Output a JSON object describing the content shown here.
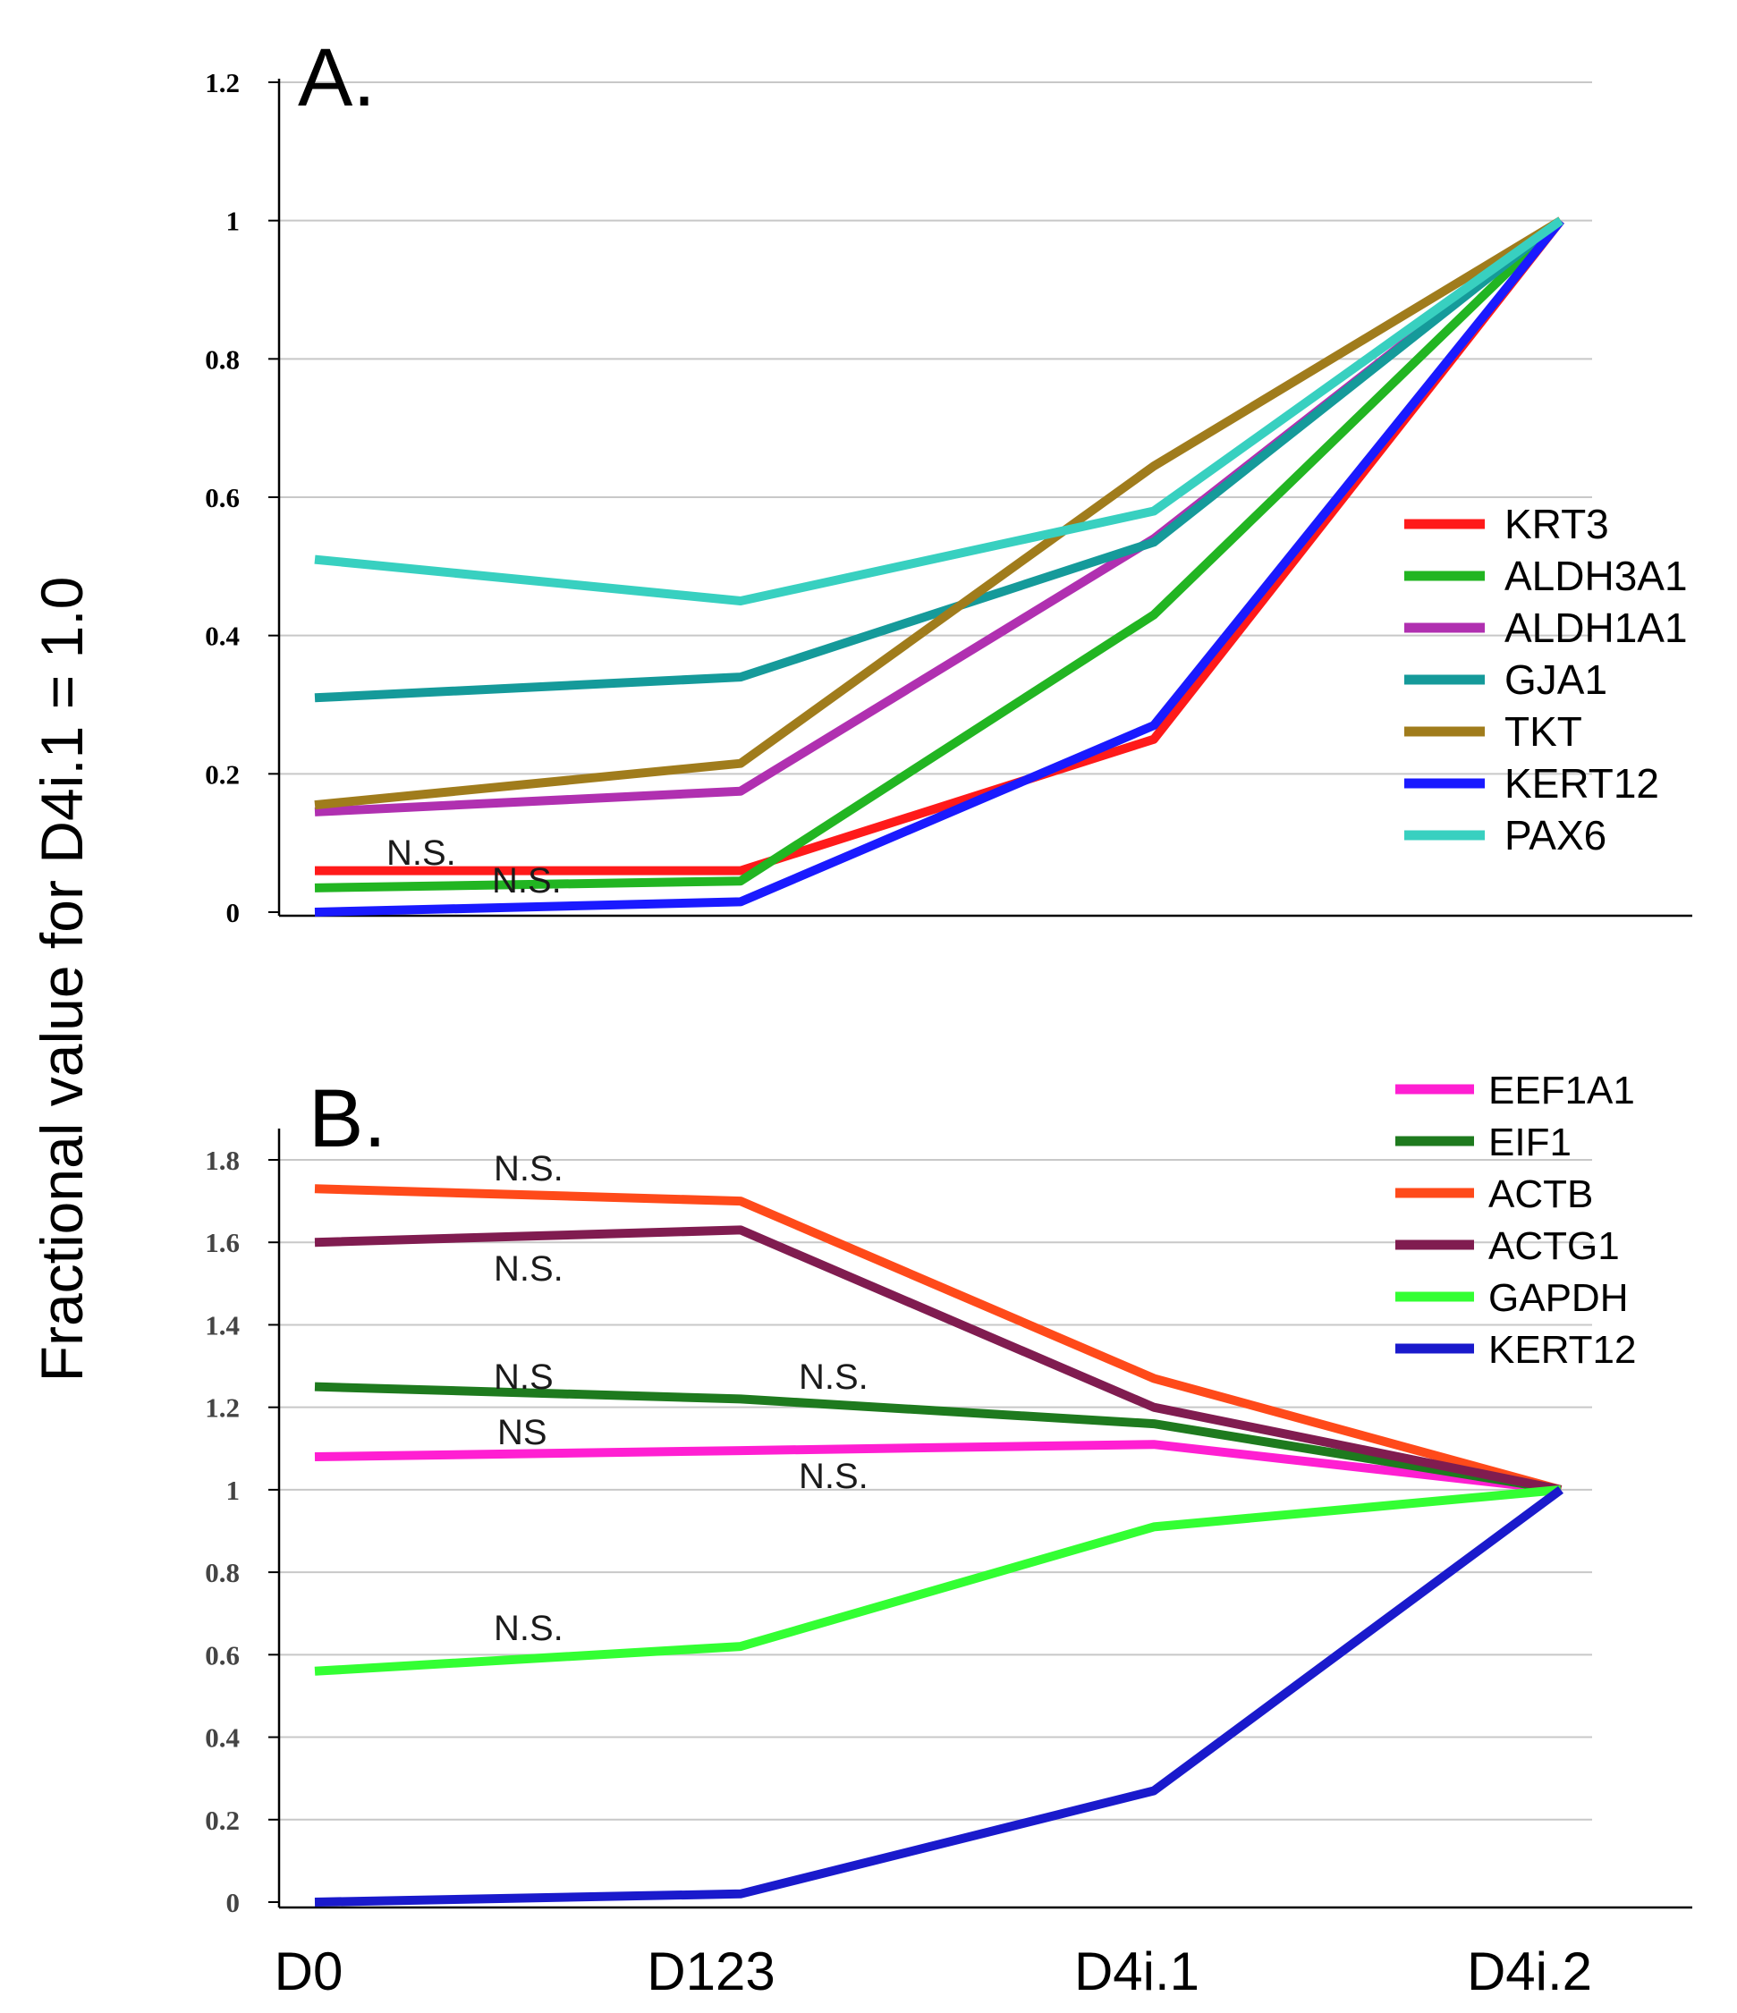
{
  "chart_data": [
    {
      "type": "line",
      "panel_label": "A.",
      "categories": [
        "D0",
        "D123",
        "D4i.1",
        "D4i.2"
      ],
      "ylabel": "Fractional value for D4i.1 = 1.0",
      "ylim": [
        0,
        1.2
      ],
      "yticks": [
        "0",
        "0.2",
        "0.4",
        "0.6",
        "0.8",
        "1",
        "1.2"
      ],
      "grid": true,
      "legend_position": "right",
      "series": [
        {
          "name": "KRT3",
          "color": "#ff1a1a",
          "values": [
            0.06,
            0.06,
            0.25,
            1.0
          ]
        },
        {
          "name": "ALDH3A1",
          "color": "#22b522",
          "values": [
            0.035,
            0.045,
            0.43,
            1.0
          ]
        },
        {
          "name": "ALDH1A1",
          "color": "#b030b0",
          "values": [
            0.145,
            0.175,
            0.54,
            1.0
          ]
        },
        {
          "name": "GJA1",
          "color": "#159a9a",
          "values": [
            0.31,
            0.34,
            0.535,
            1.0
          ]
        },
        {
          "name": "TKT",
          "color": "#a07c1c",
          "values": [
            0.155,
            0.215,
            0.645,
            1.0
          ]
        },
        {
          "name": "KERT12",
          "color": "#1a1aff",
          "values": [
            0.0,
            0.015,
            0.27,
            1.0
          ]
        },
        {
          "name": "PAX6",
          "color": "#38d0c0",
          "values": [
            0.51,
            0.45,
            0.58,
            1.0
          ]
        }
      ],
      "annotations": [
        "N.S.",
        "N.S."
      ]
    },
    {
      "type": "line",
      "panel_label": "B.",
      "categories": [
        "D0",
        "D123",
        "D4i.1",
        "D4i.2"
      ],
      "ylabel": "Fractional value for D4i.1 = 1.0",
      "ylim": [
        0,
        1.8
      ],
      "yticks": [
        "0",
        "0.2",
        "0.4",
        "0.6",
        "0.8",
        "1",
        "1.2",
        "1.4",
        "1.6",
        "1.8"
      ],
      "grid": true,
      "legend_position": "top-right",
      "series": [
        {
          "name": "EEF1A1",
          "color": "#ff1fd2",
          "values": [
            1.08,
            1.095,
            1.11,
            1.0
          ]
        },
        {
          "name": "EIF1",
          "color": "#1e7a1e",
          "values": [
            1.25,
            1.22,
            1.16,
            1.0
          ]
        },
        {
          "name": "ACTB",
          "color": "#ff4a1a",
          "values": [
            1.73,
            1.7,
            1.27,
            1.0
          ]
        },
        {
          "name": "ACTG1",
          "color": "#801c50",
          "values": [
            1.6,
            1.63,
            1.2,
            1.0
          ]
        },
        {
          "name": "GAPDH",
          "color": "#33ff33",
          "values": [
            0.56,
            0.62,
            0.91,
            1.0
          ]
        },
        {
          "name": "KERT12",
          "color": "#1a1acc",
          "values": [
            0.0,
            0.02,
            0.27,
            1.0
          ]
        }
      ],
      "annotations": [
        "N.S.",
        "N.S.",
        "N.S",
        "NS",
        "N.S.",
        "N.S.",
        "N.S."
      ]
    }
  ]
}
